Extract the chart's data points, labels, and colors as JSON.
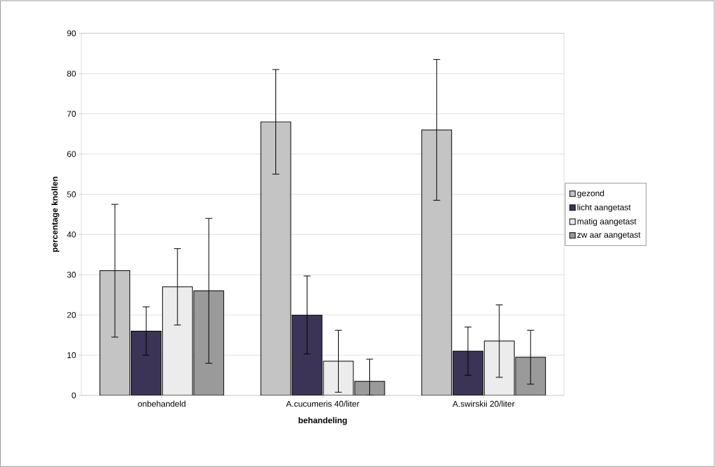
{
  "chart_data": {
    "type": "bar",
    "xlabel": "behandeling",
    "ylabel": "percentage knollen",
    "categories": [
      "onbehandeld",
      "A.cucumeris 40/liter",
      "A.swirskii 20/liter"
    ],
    "series": [
      {
        "name": "gezond",
        "color": "#c4c4c4",
        "values": [
          31,
          68,
          66
        ],
        "errors": [
          16.5,
          13,
          17.5
        ]
      },
      {
        "name": "licht aangetast",
        "color": "#3c3456",
        "values": [
          16,
          20,
          11
        ],
        "errors": [
          6,
          9.7,
          6
        ]
      },
      {
        "name": "matig aangetast",
        "color": "#ececec",
        "values": [
          27,
          8.5,
          13.5
        ],
        "errors": [
          9.5,
          7.7,
          9
        ]
      },
      {
        "name": "zw aar aangetast",
        "color": "#9a9a9a",
        "values": [
          26,
          3.5,
          9.5
        ],
        "errors": [
          18,
          [
            0,
            9
          ],
          6.7
        ]
      }
    ],
    "ylim": [
      0,
      90
    ],
    "yticks": [
      0,
      10,
      20,
      30,
      40,
      50,
      60,
      70,
      80,
      90
    ],
    "grid": "y",
    "legend": "right"
  }
}
